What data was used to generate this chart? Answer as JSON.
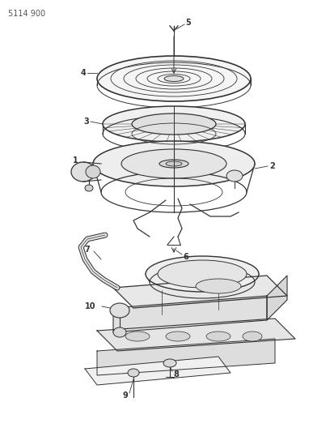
{
  "title_code": "5114 900",
  "bg": "#ffffff",
  "lc": "#333333",
  "fig_width": 4.08,
  "fig_height": 5.33,
  "dpi": 100,
  "label_fs": 7,
  "code_fs": 7
}
